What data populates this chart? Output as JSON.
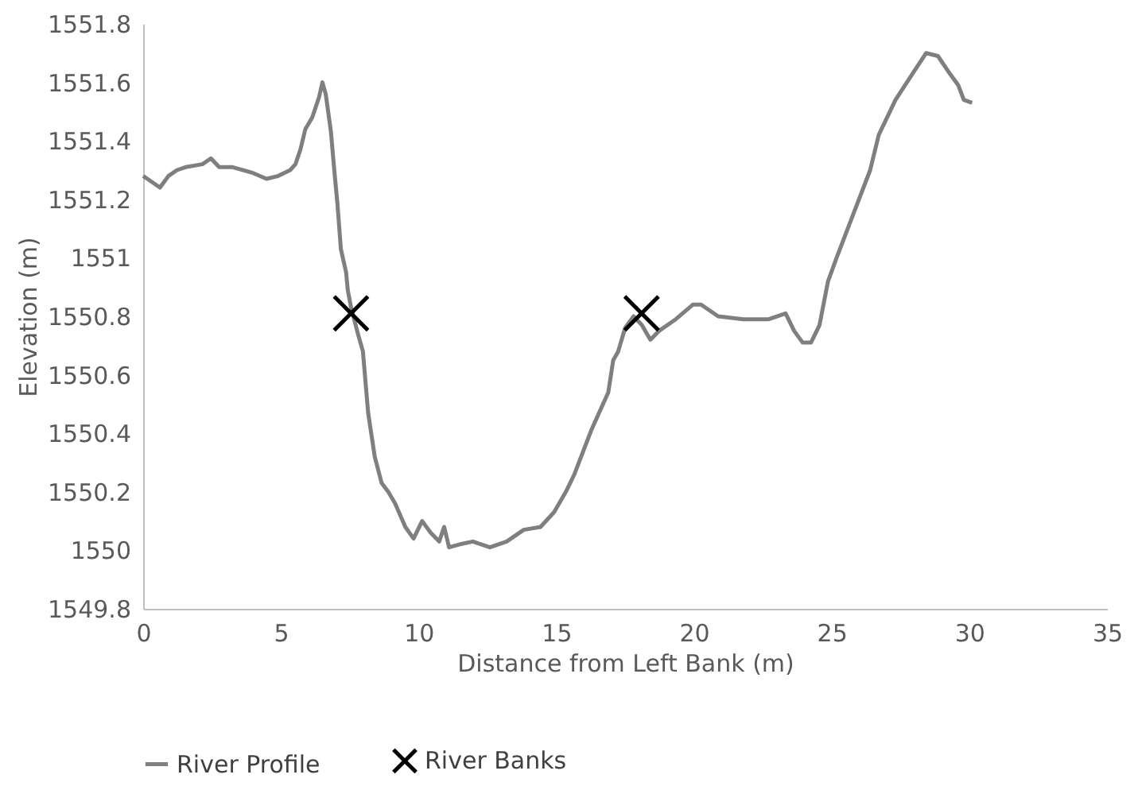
{
  "chart_data": {
    "type": "line",
    "xlabel": "Distance from Left Bank (m)",
    "ylabel": "Elevation (m)",
    "xlim": [
      0,
      35
    ],
    "xticks": [
      0,
      5,
      10,
      15,
      20,
      25,
      30,
      35
    ],
    "ylim": [
      1549.8,
      1551.8
    ],
    "yticks": [
      1549.8,
      1550,
      1550.2,
      1550.4,
      1550.6,
      1550.8,
      1551,
      1551.2,
      1551.4,
      1551.6,
      1551.8
    ],
    "grid": false,
    "legend": "bottom",
    "series": [
      {
        "name": "River Profile",
        "marker": "none",
        "color": "#7f7f7f",
        "x": [
          0,
          0.31,
          0.61,
          0.92,
          1.23,
          1.54,
          2.15,
          2.46,
          2.76,
          3.25,
          3.99,
          4.48,
          4.91,
          5.34,
          5.53,
          5.71,
          5.89,
          6.14,
          6.39,
          6.51,
          6.63,
          6.82,
          6.94,
          7.06,
          7.18,
          7.37,
          7.43,
          7.55,
          7.8,
          7.98,
          8.17,
          8.41,
          8.66,
          8.9,
          9.15,
          9.52,
          9.82,
          10.13,
          10.44,
          10.75,
          10.93,
          11.11,
          11.48,
          11.97,
          12.59,
          13.2,
          13.82,
          14.43,
          14.92,
          15.35,
          15.66,
          16.27,
          16.89,
          17.07,
          17.25,
          17.5,
          17.81,
          18.11,
          18.42,
          18.73,
          19.34,
          19.96,
          20.26,
          20.88,
          21.8,
          22.72,
          23.33,
          23.64,
          23.95,
          24.25,
          24.56,
          24.87,
          25.18,
          25.79,
          26.4,
          26.71,
          27.32,
          27.94,
          28.43,
          28.86,
          29.29,
          29.6,
          29.8,
          30.1
        ],
        "values": [
          1551.28,
          1551.26,
          1551.24,
          1551.28,
          1551.3,
          1551.31,
          1551.32,
          1551.34,
          1551.31,
          1551.31,
          1551.29,
          1551.27,
          1551.28,
          1551.3,
          1551.32,
          1551.37,
          1551.44,
          1551.48,
          1551.55,
          1551.6,
          1551.56,
          1551.43,
          1551.3,
          1551.18,
          1551.03,
          1550.95,
          1550.89,
          1550.83,
          1550.74,
          1550.68,
          1550.47,
          1550.32,
          1550.23,
          1550.2,
          1550.16,
          1550.08,
          1550.04,
          1550.1,
          1550.06,
          1550.03,
          1550.08,
          1550.01,
          1550.02,
          1550.03,
          1550.01,
          1550.03,
          1550.07,
          1550.08,
          1550.13,
          1550.2,
          1550.26,
          1550.41,
          1550.54,
          1550.65,
          1550.68,
          1550.76,
          1550.8,
          1550.77,
          1550.72,
          1550.75,
          1550.79,
          1550.84,
          1550.84,
          1550.8,
          1550.79,
          1550.79,
          1550.81,
          1550.75,
          1550.71,
          1550.71,
          1550.77,
          1550.92,
          1551.0,
          1551.15,
          1551.3,
          1551.42,
          1551.54,
          1551.63,
          1551.7,
          1551.69,
          1551.63,
          1551.59,
          1551.54,
          1551.53
        ]
      },
      {
        "name": "River Banks",
        "type": "scatter",
        "marker": "cross",
        "color": "#000000",
        "x": [
          7.55,
          18.1
        ],
        "values": [
          1550.81,
          1550.81
        ]
      }
    ]
  }
}
